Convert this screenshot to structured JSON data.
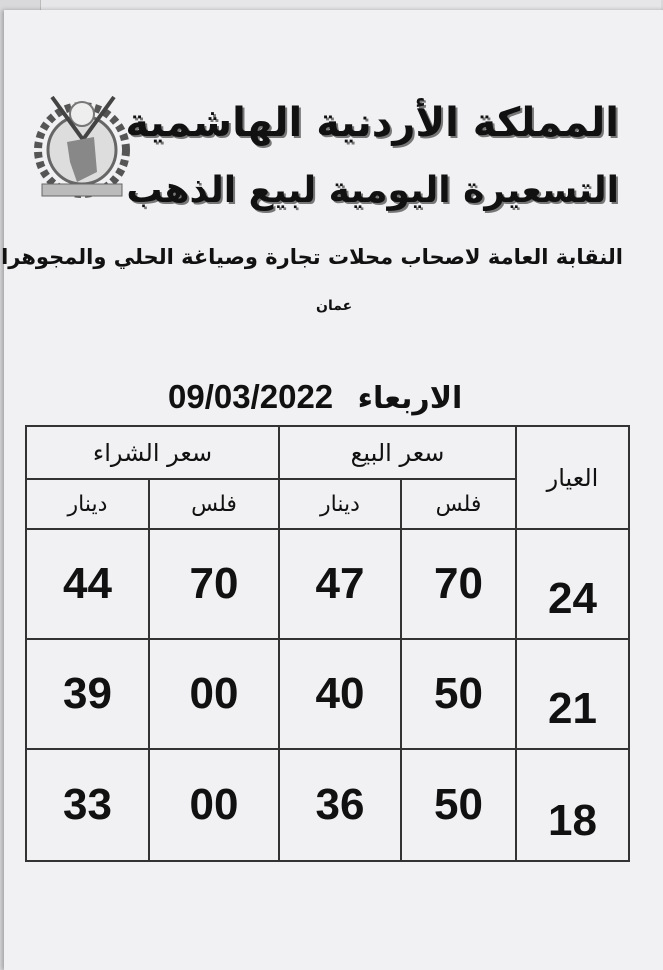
{
  "header": {
    "country": "المملكة الأردنية الهاشمية",
    "title": "التسعيرة اليومية لبيع الذهب",
    "organization": "النقابة العامة لاصحاب محلات تجارة وصياغة الحلي والمجوهرات",
    "city": "عمان",
    "day": "الاربعاء",
    "date": "09/03/2022"
  },
  "table": {
    "karat_header": "العيار",
    "sell_header": "سعر البيع",
    "buy_header": "سعر الشراء",
    "fils_label": "فلس",
    "dinar_label": "دينار",
    "rows": [
      {
        "karat": "24",
        "sell_fils": "70",
        "sell_dinar": "47",
        "buy_fils": "70",
        "buy_dinar": "44"
      },
      {
        "karat": "21",
        "sell_fils": "50",
        "sell_dinar": "40",
        "buy_fils": "00",
        "buy_dinar": "39"
      },
      {
        "karat": "18",
        "sell_fils": "50",
        "sell_dinar": "36",
        "buy_fils": "00",
        "buy_dinar": "33"
      }
    ]
  }
}
